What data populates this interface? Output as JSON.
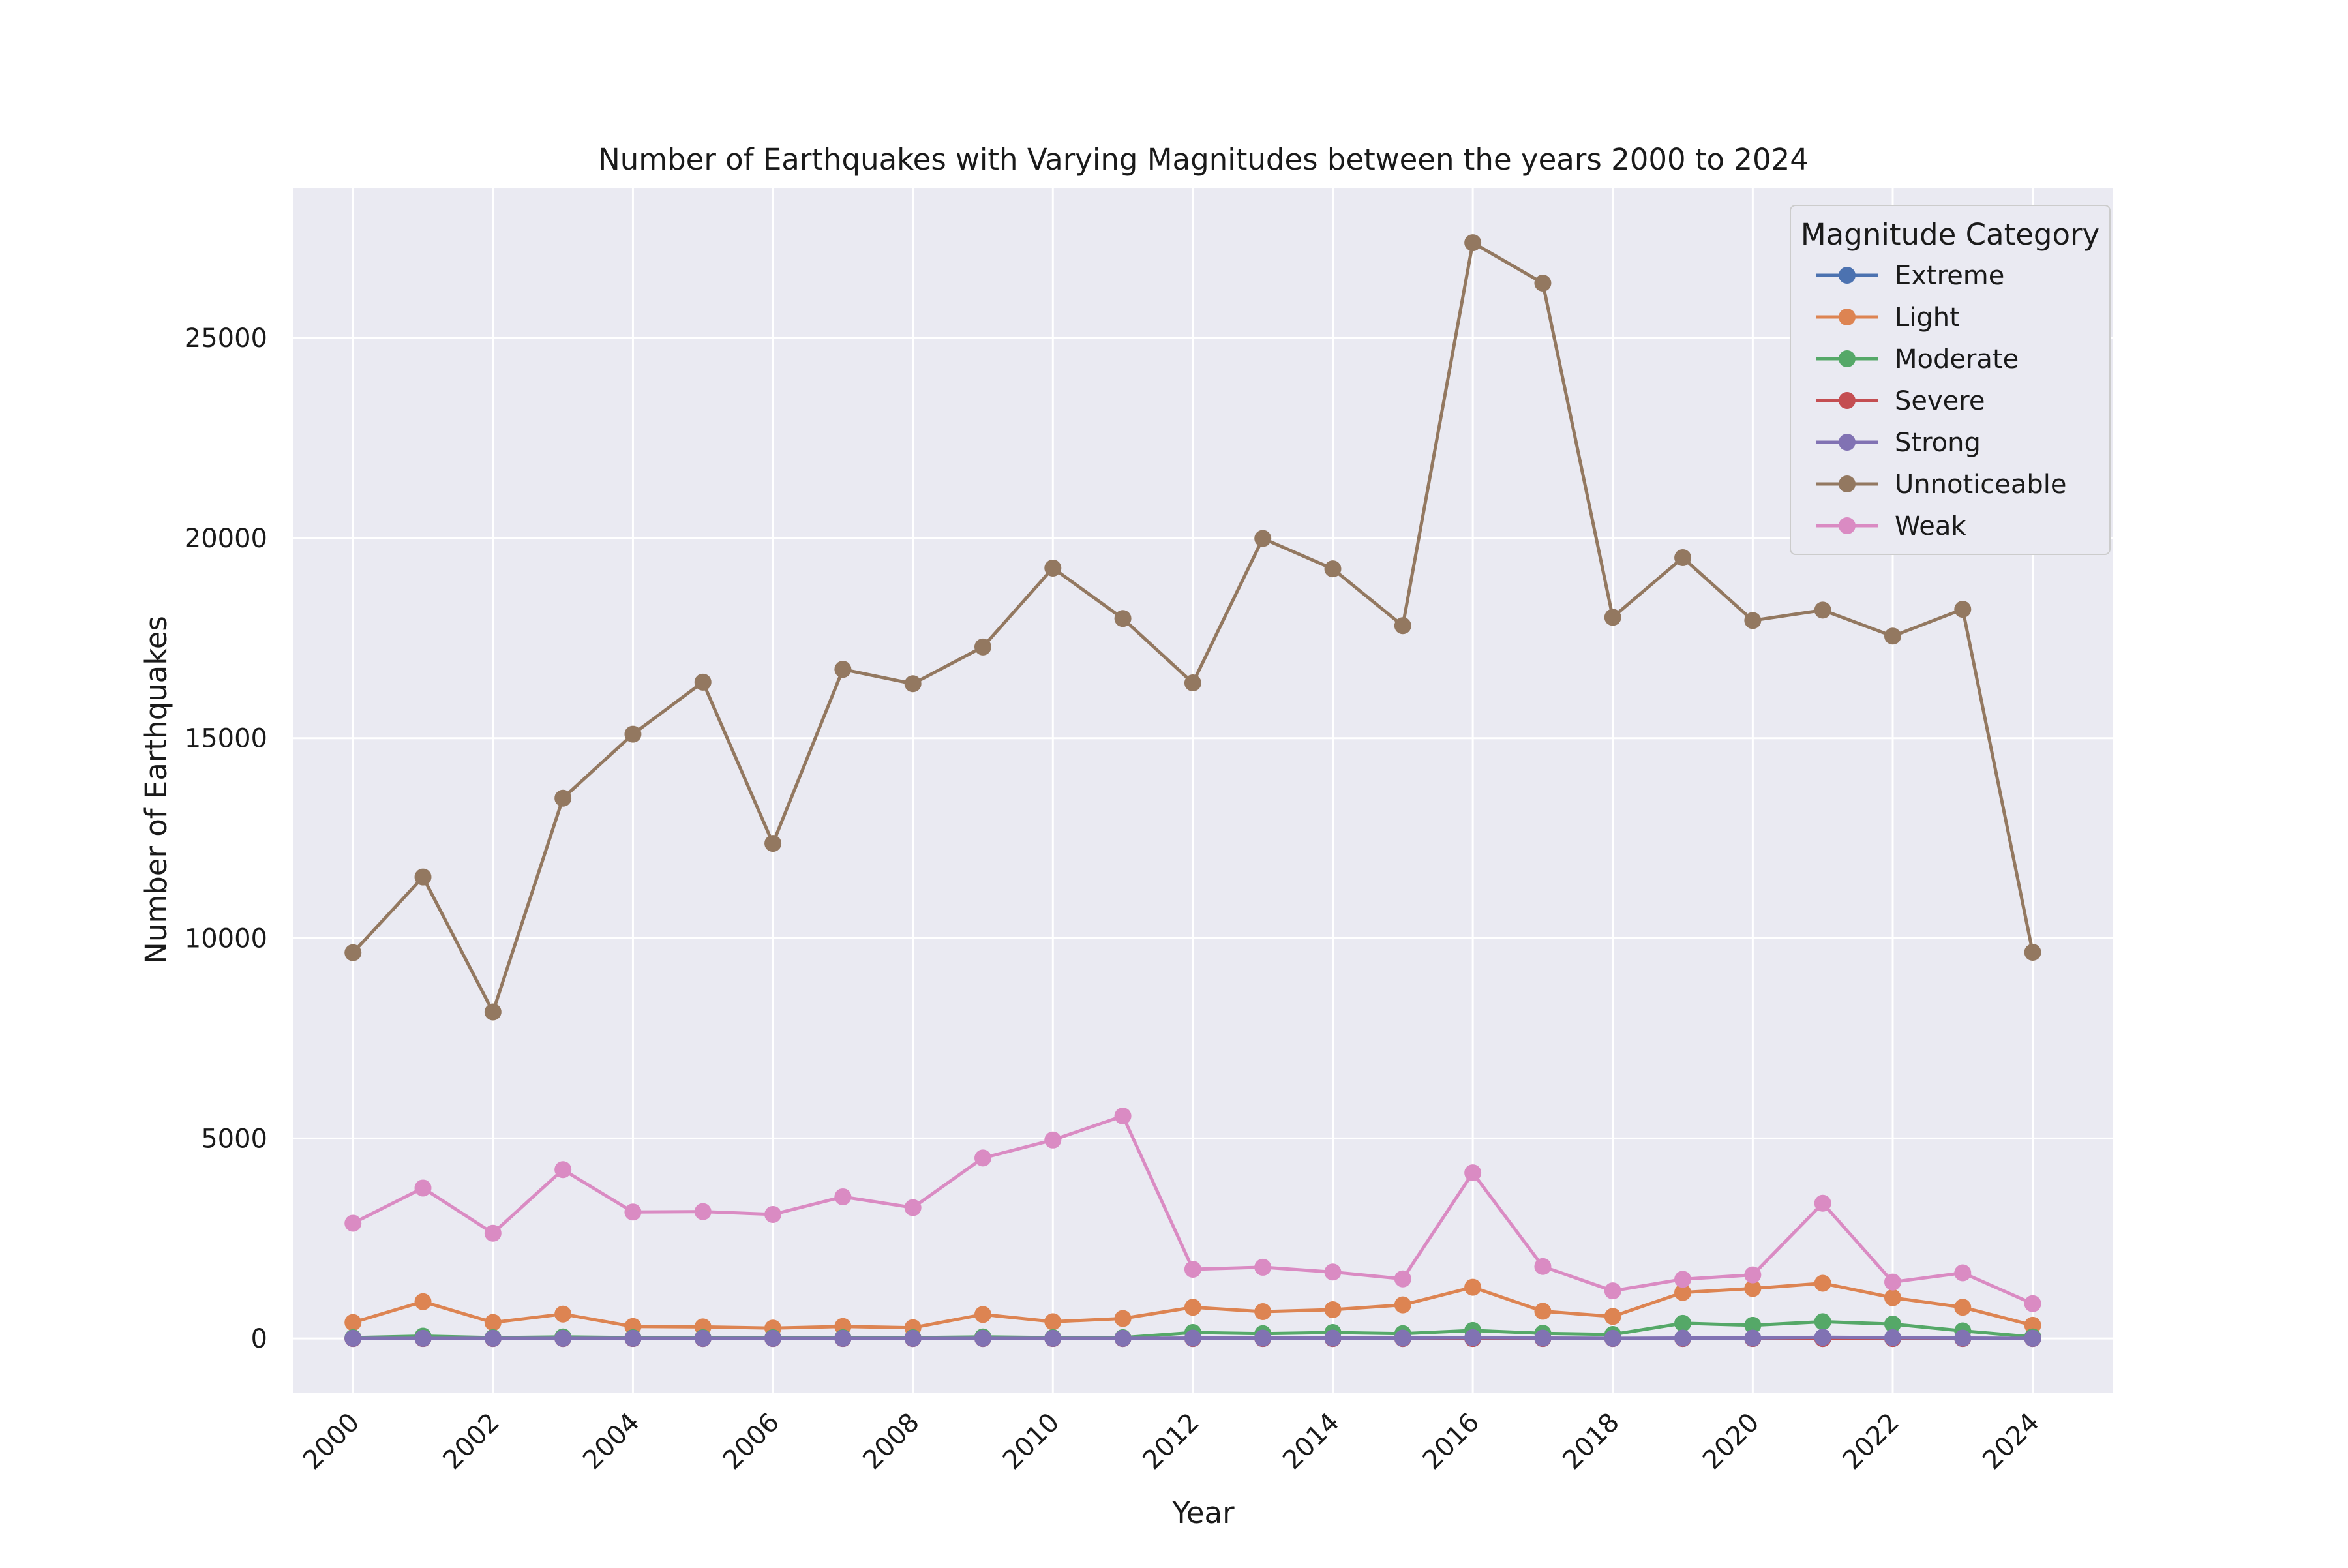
{
  "chart_data": {
    "type": "line",
    "title": "Number of Earthquakes with Varying Magnitudes between the years 2000 to 2024",
    "xlabel": "Year",
    "ylabel": "Number of Earthquakes",
    "x": [
      2000,
      2001,
      2002,
      2003,
      2004,
      2005,
      2006,
      2007,
      2008,
      2009,
      2010,
      2011,
      2012,
      2013,
      2014,
      2015,
      2016,
      2017,
      2018,
      2019,
      2020,
      2021,
      2022,
      2023,
      2024
    ],
    "xlim": [
      1999.15,
      2025.15
    ],
    "ylim": [
      -1350,
      28750
    ],
    "xticks": [
      "2000",
      "2002",
      "2004",
      "2006",
      "2008",
      "2010",
      "2012",
      "2014",
      "2016",
      "2018",
      "2020",
      "2022",
      "2024"
    ],
    "yticks": [
      "0",
      "5000",
      "10000",
      "15000",
      "20000",
      "25000"
    ],
    "grid": true,
    "legend": {
      "title": "Magnitude Category",
      "placement": "top-right"
    },
    "series": [
      {
        "name": "Extreme",
        "color": "#4c72b0",
        "values": [
          0,
          0,
          0,
          0,
          0,
          0,
          0,
          0,
          0,
          0,
          0,
          0,
          0,
          0,
          0,
          0,
          0,
          0,
          0,
          0,
          0,
          0,
          0,
          0,
          0
        ]
      },
      {
        "name": "Light",
        "color": "#dd8452",
        "values": [
          400,
          920,
          400,
          610,
          300,
          290,
          260,
          300,
          270,
          600,
          420,
          500,
          780,
          670,
          720,
          840,
          1280,
          680,
          550,
          1150,
          1250,
          1380,
          1020,
          780,
          330
        ]
      },
      {
        "name": "Moderate",
        "color": "#55a868",
        "values": [
          20,
          60,
          20,
          40,
          20,
          20,
          20,
          20,
          20,
          40,
          20,
          20,
          150,
          120,
          150,
          120,
          200,
          130,
          100,
          380,
          330,
          420,
          360,
          190,
          40
        ]
      },
      {
        "name": "Severe",
        "color": "#c44e52",
        "values": [
          0,
          0,
          0,
          0,
          0,
          0,
          0,
          0,
          0,
          0,
          0,
          0,
          0,
          0,
          0,
          0,
          0,
          0,
          0,
          0,
          0,
          0,
          0,
          0,
          0
        ]
      },
      {
        "name": "Strong",
        "color": "#8172b3",
        "values": [
          5,
          5,
          5,
          5,
          5,
          5,
          5,
          5,
          5,
          5,
          5,
          5,
          10,
          10,
          10,
          10,
          20,
          10,
          5,
          10,
          10,
          30,
          20,
          10,
          5
        ]
      },
      {
        "name": "Unnoticeable",
        "color": "#937860",
        "values": [
          9640,
          11530,
          8160,
          13500,
          15100,
          16400,
          12370,
          16720,
          16360,
          17280,
          19250,
          17990,
          16380,
          19990,
          19230,
          17810,
          27380,
          26370,
          18020,
          19510,
          17940,
          18200,
          17550,
          18220,
          9650
        ]
      },
      {
        "name": "Weak",
        "color": "#da8bc3",
        "values": [
          2880,
          3760,
          2630,
          4220,
          3160,
          3170,
          3100,
          3540,
          3270,
          4510,
          4960,
          5560,
          1730,
          1780,
          1660,
          1490,
          4140,
          1800,
          1190,
          1480,
          1590,
          3380,
          1410,
          1640,
          870
        ]
      }
    ]
  }
}
